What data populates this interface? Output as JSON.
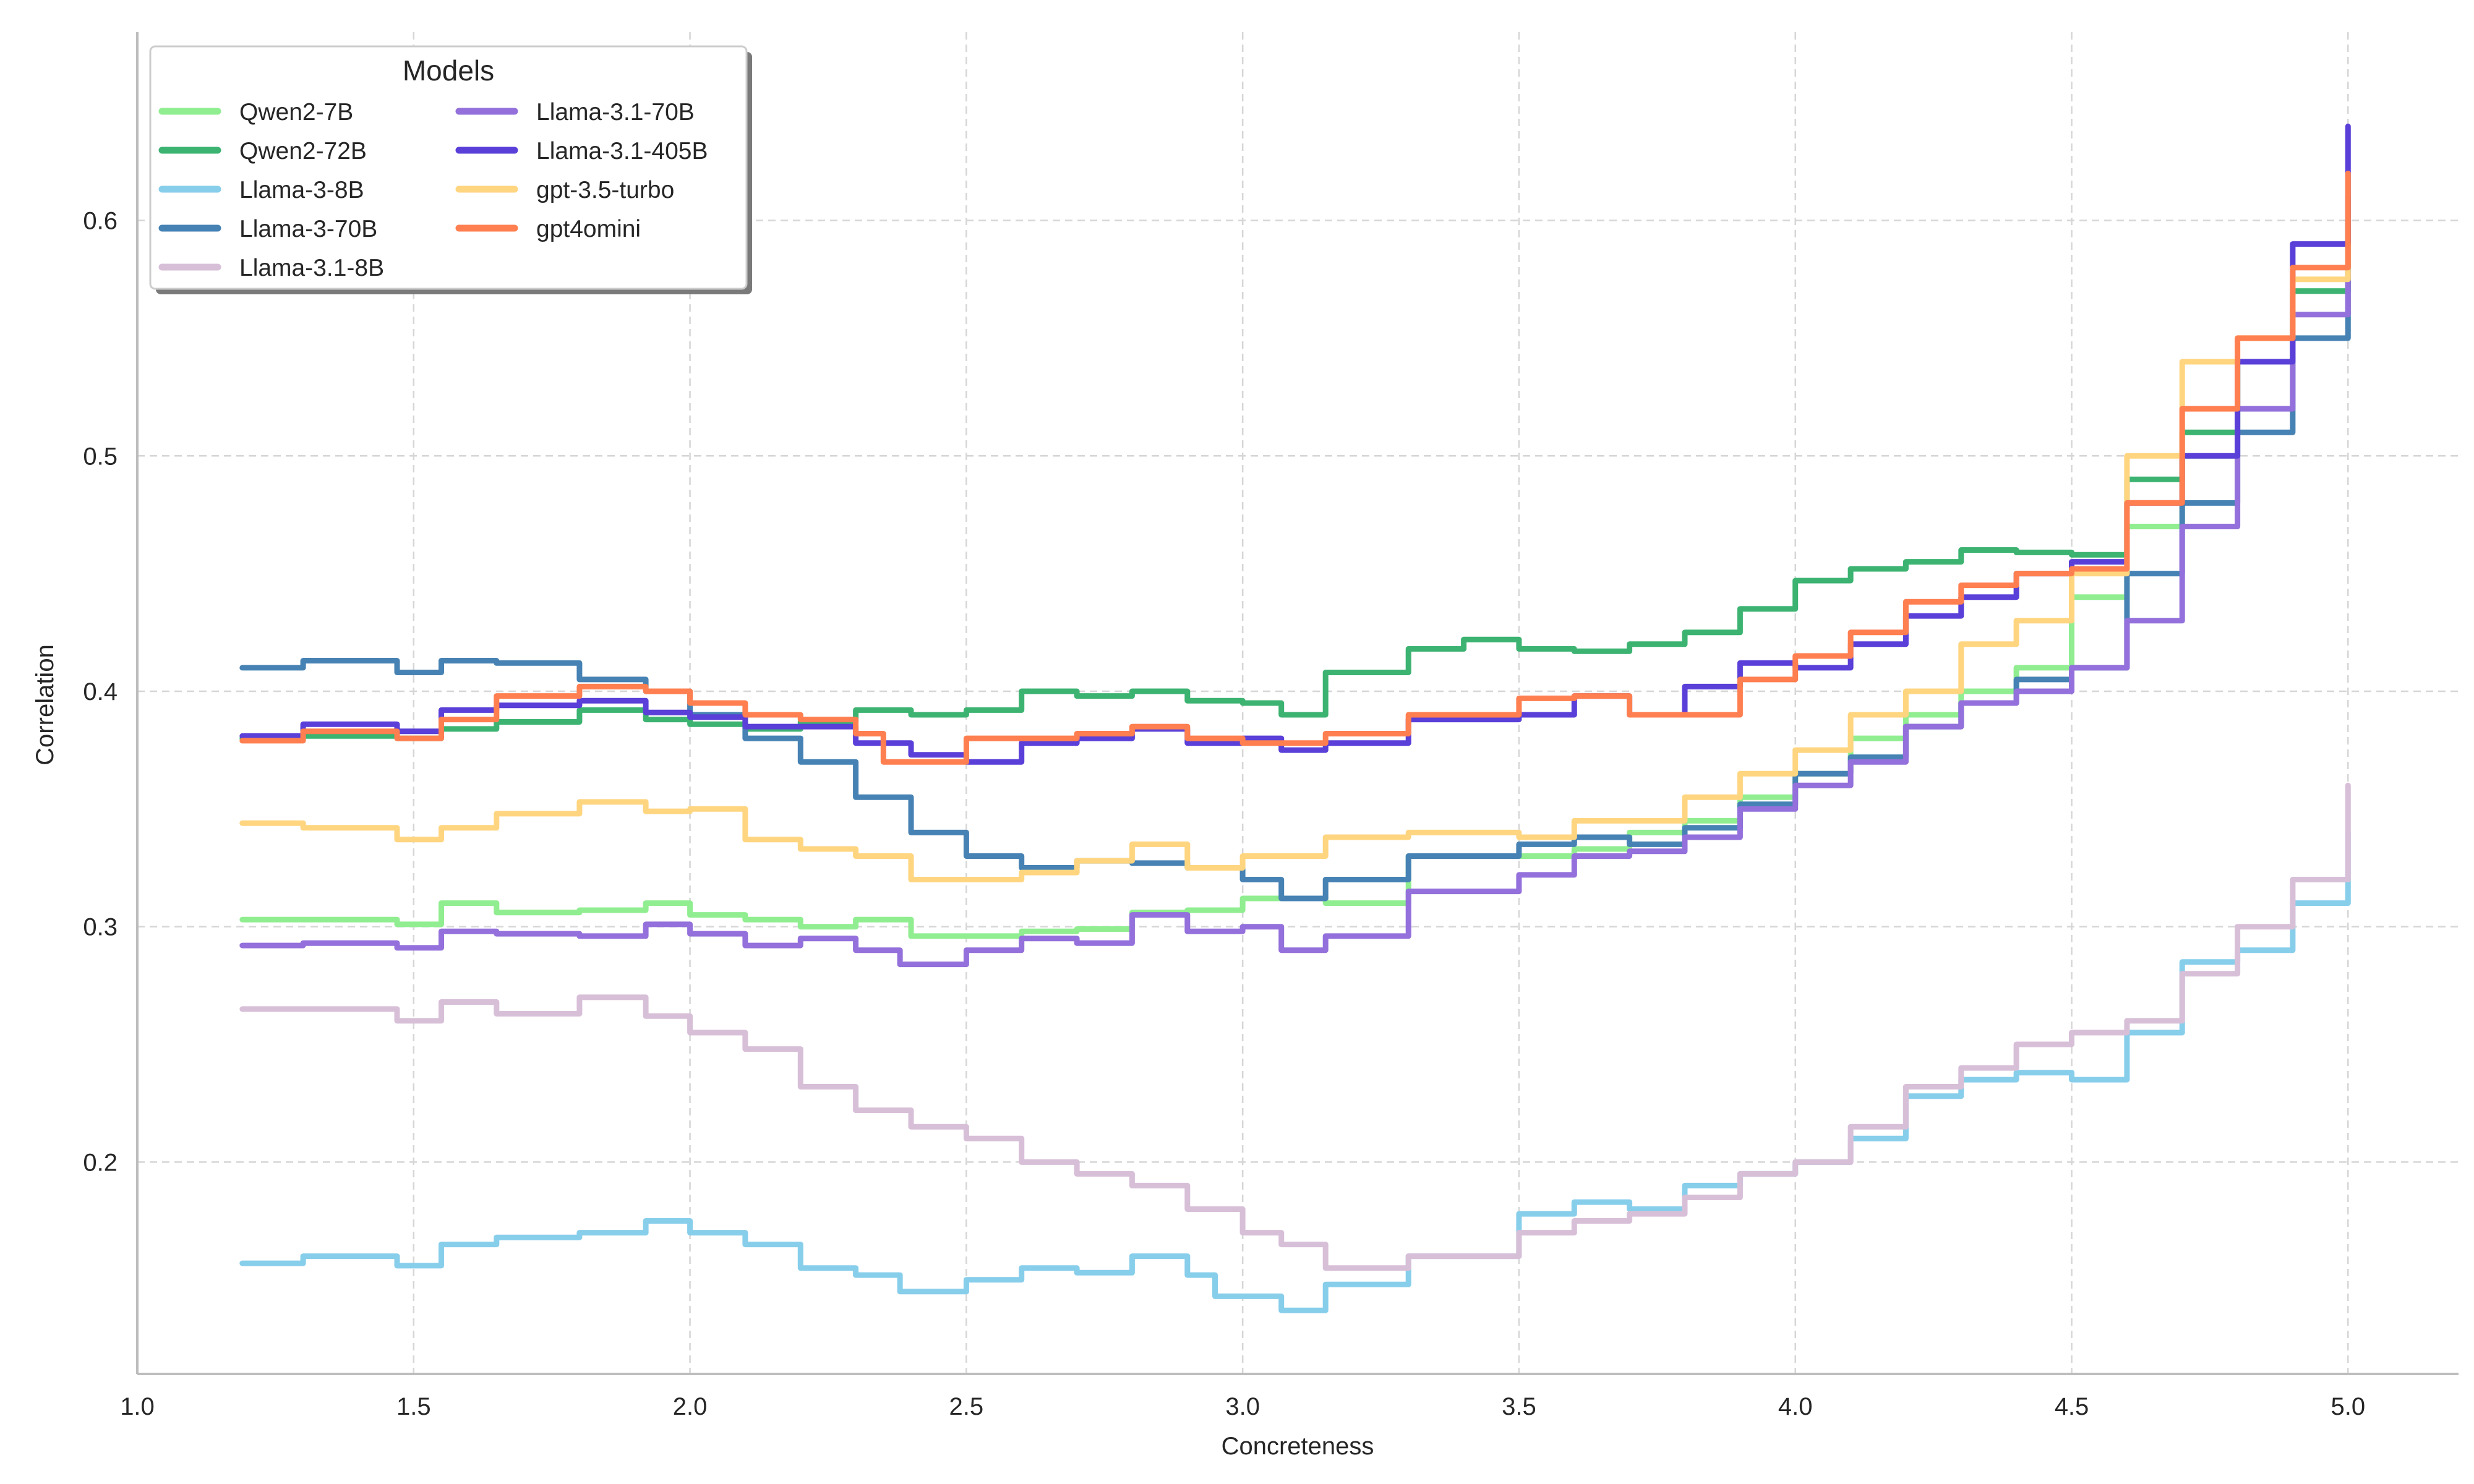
{
  "chart_data": {
    "type": "line",
    "title": "",
    "xlabel": "Concreteness",
    "ylabel": "Correlation",
    "xlim": [
      1.0,
      5.2
    ],
    "ylim": [
      0.11,
      0.68
    ],
    "xticks": [
      1.0,
      1.5,
      2.0,
      2.5,
      3.0,
      3.5,
      4.0,
      4.5,
      5.0
    ],
    "xtick_labels": [
      "1.0",
      "1.5",
      "2.0",
      "2.5",
      "3.0",
      "3.5",
      "4.0",
      "4.5",
      "5.0"
    ],
    "yticks": [
      0.2,
      0.3,
      0.4,
      0.5,
      0.6
    ],
    "ytick_labels": [
      "0.2",
      "0.3",
      "0.4",
      "0.5",
      "0.6"
    ],
    "grid": true,
    "legend": {
      "title": "Models",
      "placement": "upper-left",
      "columns": 2
    },
    "series": [
      {
        "name": "Qwen2-7B",
        "color": "#90EE90",
        "x": [
          1.19,
          1.3,
          1.47,
          1.55,
          1.65,
          1.8,
          1.92,
          2.0,
          2.1,
          2.2,
          2.3,
          2.4,
          2.5,
          2.6,
          2.7,
          2.8,
          2.9,
          3.0,
          3.07,
          3.15,
          3.3,
          3.5,
          3.6,
          3.7,
          3.8,
          3.9,
          4.0,
          4.1,
          4.2,
          4.3,
          4.4,
          4.5,
          4.6,
          4.7,
          4.8,
          4.9,
          5.0
        ],
        "y": [
          0.303,
          0.303,
          0.301,
          0.31,
          0.306,
          0.307,
          0.31,
          0.305,
          0.303,
          0.3,
          0.303,
          0.296,
          0.296,
          0.298,
          0.299,
          0.306,
          0.307,
          0.312,
          0.312,
          0.31,
          0.33,
          0.33,
          0.333,
          0.34,
          0.345,
          0.355,
          0.365,
          0.38,
          0.39,
          0.4,
          0.41,
          0.44,
          0.47,
          0.5,
          0.54,
          0.57,
          0.6
        ]
      },
      {
        "name": "Qwen2-72B",
        "color": "#3CB371",
        "x": [
          1.19,
          1.3,
          1.47,
          1.55,
          1.65,
          1.8,
          1.92,
          2.0,
          2.1,
          2.2,
          2.3,
          2.4,
          2.5,
          2.6,
          2.7,
          2.8,
          2.9,
          3.0,
          3.07,
          3.15,
          3.3,
          3.4,
          3.5,
          3.6,
          3.7,
          3.8,
          3.9,
          4.0,
          4.1,
          4.2,
          4.3,
          4.4,
          4.5,
          4.6,
          4.7,
          4.8,
          4.9,
          5.0
        ],
        "y": [
          0.38,
          0.381,
          0.38,
          0.384,
          0.387,
          0.392,
          0.388,
          0.386,
          0.384,
          0.387,
          0.392,
          0.39,
          0.392,
          0.4,
          0.398,
          0.4,
          0.396,
          0.395,
          0.39,
          0.408,
          0.418,
          0.422,
          0.418,
          0.417,
          0.42,
          0.425,
          0.435,
          0.447,
          0.452,
          0.455,
          0.46,
          0.459,
          0.458,
          0.49,
          0.51,
          0.54,
          0.57,
          0.6
        ]
      },
      {
        "name": "Llama-3-8B",
        "color": "#87CEEB",
        "x": [
          1.19,
          1.3,
          1.47,
          1.55,
          1.65,
          1.8,
          1.92,
          2.0,
          2.1,
          2.2,
          2.3,
          2.38,
          2.5,
          2.6,
          2.7,
          2.8,
          2.9,
          2.95,
          3.05,
          3.07,
          3.15,
          3.3,
          3.5,
          3.6,
          3.7,
          3.8,
          3.9,
          4.0,
          4.1,
          4.2,
          4.3,
          4.4,
          4.5,
          4.6,
          4.7,
          4.8,
          4.9,
          5.0
        ],
        "y": [
          0.157,
          0.16,
          0.156,
          0.165,
          0.168,
          0.17,
          0.175,
          0.17,
          0.165,
          0.155,
          0.152,
          0.145,
          0.15,
          0.155,
          0.153,
          0.16,
          0.152,
          0.143,
          0.143,
          0.137,
          0.148,
          0.16,
          0.178,
          0.183,
          0.18,
          0.19,
          0.195,
          0.2,
          0.21,
          0.228,
          0.235,
          0.238,
          0.235,
          0.255,
          0.285,
          0.29,
          0.31,
          0.34
        ]
      },
      {
        "name": "Llama-3-70B",
        "color": "#4682B4",
        "x": [
          1.19,
          1.3,
          1.47,
          1.55,
          1.65,
          1.8,
          1.92,
          2.0,
          2.1,
          2.2,
          2.3,
          2.4,
          2.5,
          2.6,
          2.7,
          2.8,
          2.9,
          3.0,
          3.07,
          3.15,
          3.3,
          3.5,
          3.6,
          3.7,
          3.8,
          3.9,
          4.0,
          4.1,
          4.2,
          4.3,
          4.4,
          4.5,
          4.6,
          4.7,
          4.8,
          4.9,
          5.0
        ],
        "y": [
          0.41,
          0.413,
          0.408,
          0.413,
          0.412,
          0.405,
          0.4,
          0.39,
          0.38,
          0.37,
          0.355,
          0.34,
          0.33,
          0.325,
          0.328,
          0.327,
          0.325,
          0.32,
          0.312,
          0.32,
          0.33,
          0.335,
          0.338,
          0.335,
          0.342,
          0.352,
          0.365,
          0.372,
          0.385,
          0.395,
          0.405,
          0.41,
          0.45,
          0.48,
          0.51,
          0.55,
          0.61
        ]
      },
      {
        "name": "Llama-3.1-8B",
        "color": "#D8BFD8",
        "x": [
          1.19,
          1.3,
          1.47,
          1.55,
          1.65,
          1.8,
          1.92,
          2.0,
          2.1,
          2.2,
          2.3,
          2.4,
          2.5,
          2.6,
          2.7,
          2.8,
          2.9,
          3.0,
          3.07,
          3.15,
          3.3,
          3.5,
          3.6,
          3.7,
          3.8,
          3.9,
          4.0,
          4.1,
          4.2,
          4.3,
          4.4,
          4.5,
          4.6,
          4.7,
          4.8,
          4.9,
          5.0
        ],
        "y": [
          0.265,
          0.265,
          0.26,
          0.268,
          0.263,
          0.27,
          0.262,
          0.255,
          0.248,
          0.232,
          0.222,
          0.215,
          0.21,
          0.2,
          0.195,
          0.19,
          0.18,
          0.17,
          0.165,
          0.155,
          0.16,
          0.17,
          0.175,
          0.178,
          0.185,
          0.195,
          0.2,
          0.215,
          0.232,
          0.24,
          0.25,
          0.255,
          0.26,
          0.28,
          0.3,
          0.32,
          0.36
        ]
      },
      {
        "name": "Llama-3.1-70B",
        "color": "#9370DB",
        "x": [
          1.19,
          1.3,
          1.47,
          1.55,
          1.65,
          1.8,
          1.92,
          2.0,
          2.1,
          2.2,
          2.3,
          2.38,
          2.5,
          2.6,
          2.7,
          2.8,
          2.9,
          3.0,
          3.07,
          3.15,
          3.3,
          3.5,
          3.6,
          3.7,
          3.8,
          3.9,
          4.0,
          4.1,
          4.2,
          4.3,
          4.4,
          4.5,
          4.6,
          4.7,
          4.8,
          4.9,
          5.0
        ],
        "y": [
          0.292,
          0.293,
          0.291,
          0.298,
          0.297,
          0.296,
          0.301,
          0.297,
          0.292,
          0.295,
          0.29,
          0.284,
          0.29,
          0.295,
          0.293,
          0.305,
          0.298,
          0.3,
          0.29,
          0.296,
          0.315,
          0.322,
          0.33,
          0.332,
          0.338,
          0.35,
          0.36,
          0.37,
          0.385,
          0.395,
          0.4,
          0.41,
          0.43,
          0.47,
          0.52,
          0.56,
          0.58
        ]
      },
      {
        "name": "Llama-3.1-405B",
        "color": "#5A3FD8",
        "x": [
          1.19,
          1.3,
          1.47,
          1.55,
          1.65,
          1.8,
          1.92,
          2.0,
          2.1,
          2.2,
          2.3,
          2.4,
          2.5,
          2.6,
          2.7,
          2.8,
          2.9,
          3.0,
          3.07,
          3.15,
          3.3,
          3.5,
          3.6,
          3.7,
          3.8,
          3.9,
          4.0,
          4.1,
          4.2,
          4.3,
          4.4,
          4.5,
          4.6,
          4.7,
          4.8,
          4.9,
          5.0
        ],
        "y": [
          0.381,
          0.386,
          0.383,
          0.392,
          0.394,
          0.396,
          0.391,
          0.389,
          0.385,
          0.385,
          0.378,
          0.373,
          0.37,
          0.378,
          0.38,
          0.384,
          0.378,
          0.38,
          0.375,
          0.378,
          0.388,
          0.39,
          0.398,
          0.39,
          0.402,
          0.412,
          0.41,
          0.42,
          0.432,
          0.44,
          0.45,
          0.455,
          0.48,
          0.5,
          0.54,
          0.59,
          0.64
        ]
      },
      {
        "name": "gpt-3.5-turbo",
        "color": "#FFD580",
        "x": [
          1.19,
          1.3,
          1.47,
          1.55,
          1.65,
          1.8,
          1.92,
          2.0,
          2.1,
          2.2,
          2.3,
          2.4,
          2.5,
          2.6,
          2.7,
          2.8,
          2.9,
          3.0,
          3.07,
          3.15,
          3.3,
          3.5,
          3.6,
          3.7,
          3.8,
          3.9,
          4.0,
          4.1,
          4.2,
          4.3,
          4.4,
          4.5,
          4.6,
          4.7,
          4.8,
          4.9,
          5.0
        ],
        "y": [
          0.344,
          0.342,
          0.337,
          0.342,
          0.348,
          0.353,
          0.349,
          0.35,
          0.337,
          0.333,
          0.33,
          0.32,
          0.32,
          0.323,
          0.328,
          0.335,
          0.325,
          0.33,
          0.33,
          0.338,
          0.34,
          0.338,
          0.345,
          0.345,
          0.355,
          0.365,
          0.375,
          0.39,
          0.4,
          0.42,
          0.43,
          0.45,
          0.5,
          0.54,
          0.55,
          0.575,
          0.59
        ]
      },
      {
        "name": "gpt4omini",
        "color": "#FF7F50",
        "x": [
          1.19,
          1.3,
          1.47,
          1.55,
          1.65,
          1.8,
          1.92,
          2.0,
          2.1,
          2.2,
          2.3,
          2.35,
          2.5,
          2.6,
          2.7,
          2.8,
          2.9,
          3.0,
          3.07,
          3.15,
          3.3,
          3.4,
          3.5,
          3.6,
          3.7,
          3.8,
          3.9,
          4.0,
          4.1,
          4.2,
          4.3,
          4.4,
          4.5,
          4.6,
          4.7,
          4.8,
          4.9,
          5.0
        ],
        "y": [
          0.379,
          0.383,
          0.38,
          0.388,
          0.398,
          0.402,
          0.4,
          0.395,
          0.39,
          0.388,
          0.382,
          0.37,
          0.38,
          0.38,
          0.382,
          0.385,
          0.38,
          0.378,
          0.378,
          0.382,
          0.39,
          0.39,
          0.397,
          0.398,
          0.39,
          0.39,
          0.405,
          0.415,
          0.425,
          0.438,
          0.445,
          0.45,
          0.452,
          0.48,
          0.52,
          0.55,
          0.58,
          0.62
        ]
      }
    ]
  }
}
